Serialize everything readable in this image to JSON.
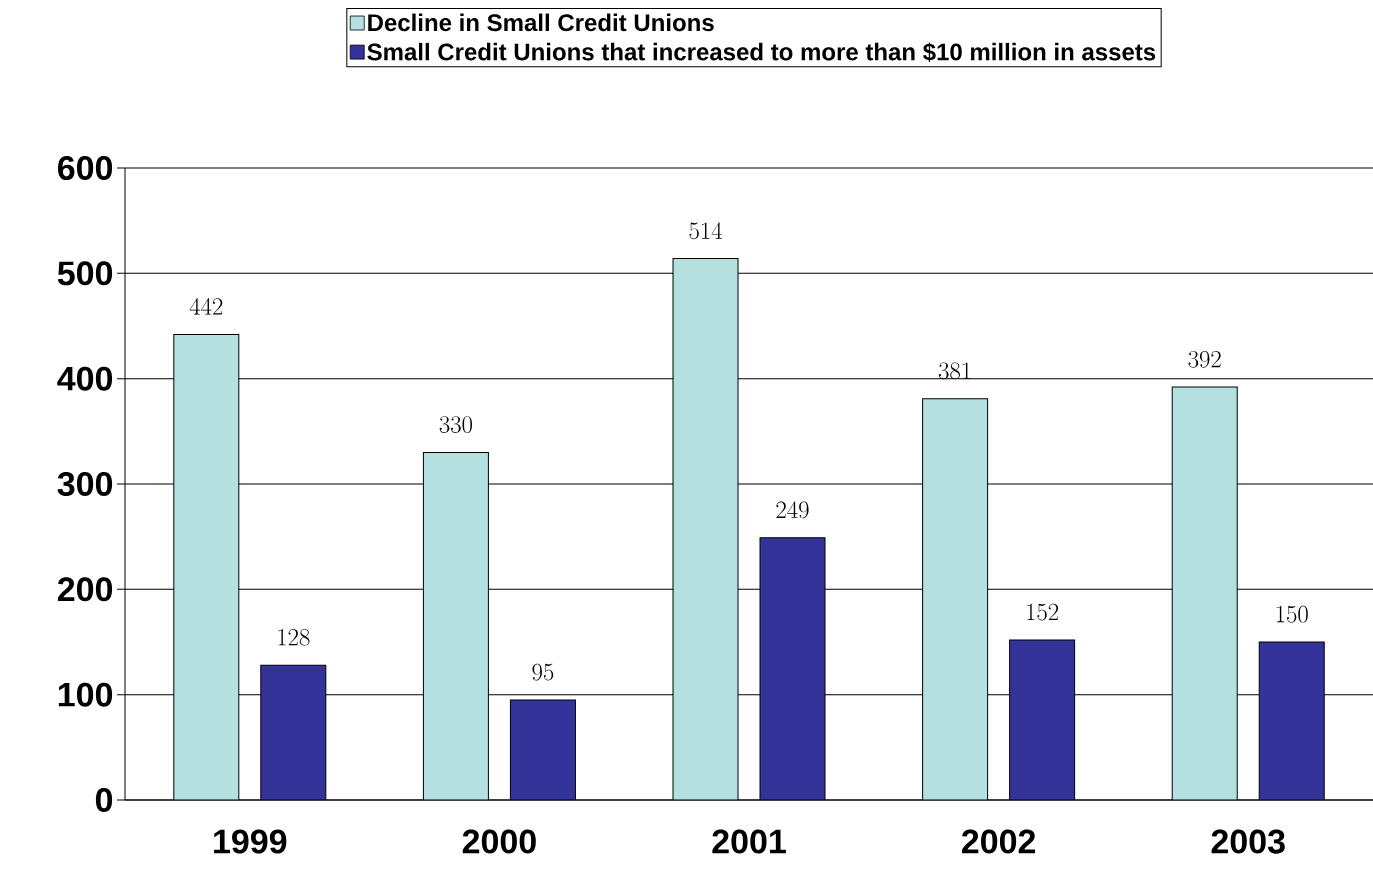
{
  "chart_data": {
    "type": "bar",
    "categories": [
      "1999",
      "2000",
      "2001",
      "2002",
      "2003"
    ],
    "series": [
      {
        "name": "Decline in Small Credit Unions",
        "color": "#b4e0e0",
        "values": [
          442,
          330,
          514,
          381,
          392
        ]
      },
      {
        "name": "Small Credit Unions that increased to more than $10 million in assets",
        "color": "#333399",
        "values": [
          128,
          95,
          249,
          152,
          150
        ]
      }
    ],
    "ylim": [
      0,
      600
    ],
    "yticks": [
      0,
      100,
      200,
      300,
      400,
      500,
      600
    ],
    "grid": "y",
    "legend": "top",
    "data_labels": true
  }
}
